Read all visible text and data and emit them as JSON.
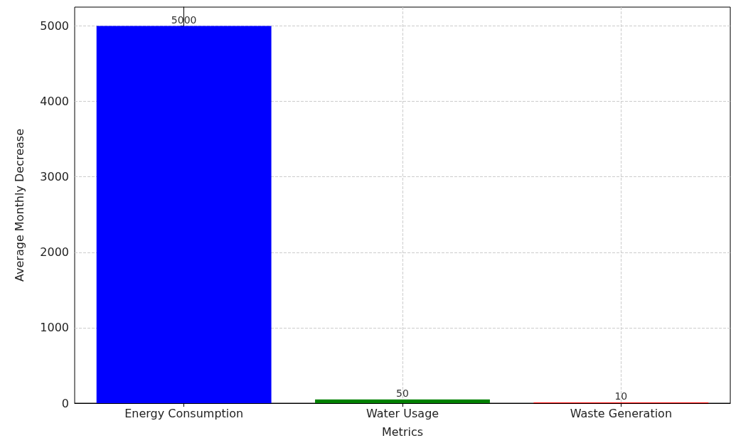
{
  "chart_data": {
    "type": "bar",
    "xlabel": "Metrics",
    "ylabel": "Average Monthly Decrease",
    "categories": [
      "Energy Consumption",
      "Water Usage",
      "Waste Generation"
    ],
    "values": [
      5000,
      50,
      10
    ],
    "colors": [
      "#0000ff",
      "#008000",
      "#ff0000"
    ],
    "ylim": [
      0,
      5250
    ],
    "yticks": [
      0,
      1000,
      2000,
      3000,
      4000,
      5000
    ],
    "grid": true,
    "data_labels": true
  }
}
